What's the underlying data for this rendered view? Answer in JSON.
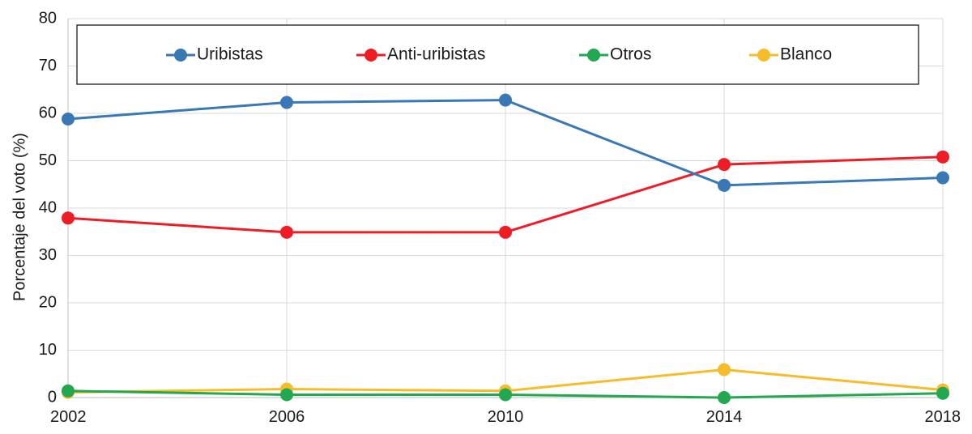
{
  "chart_data": {
    "type": "line",
    "title": "",
    "xlabel": "",
    "ylabel": "Porcentaje del voto (%)",
    "x": [
      2002,
      2006,
      2010,
      2014,
      2018
    ],
    "ylim": [
      0,
      80
    ],
    "yticks": [
      0,
      10,
      20,
      30,
      40,
      50,
      60,
      70,
      80
    ],
    "grid": true,
    "legend_position": "top",
    "series": [
      {
        "name": "Uribistas",
        "color": "#3A78B5",
        "values": [
          58.8,
          62.3,
          62.8,
          44.8,
          46.4
        ]
      },
      {
        "name": "Anti-uribistas",
        "color": "#EE1C24",
        "values": [
          37.9,
          34.9,
          34.9,
          49.2,
          50.8
        ]
      },
      {
        "name": "Otros",
        "color": "#21A850",
        "values": [
          1.4,
          0.6,
          0.6,
          0.0,
          0.9
        ]
      },
      {
        "name": "Blanco",
        "color": "#F7BC2C",
        "values": [
          1.1,
          1.8,
          1.4,
          5.9,
          1.6
        ]
      }
    ]
  }
}
